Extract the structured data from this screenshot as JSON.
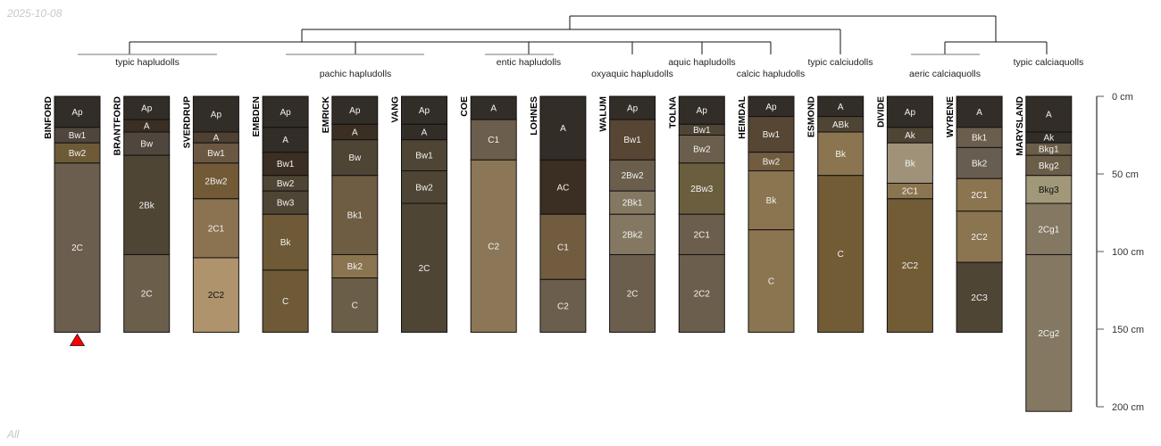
{
  "date_stamp": "2025-10-08",
  "footer_label": "All",
  "taxa_labels": [
    "typic hapludolls",
    "pachic hapludolls",
    "entic hapludolls",
    "oxyaquic hapludolls",
    "aquic hapludolls",
    "calcic hapludolls",
    "typic calciudolls",
    "aeric calciaquolls",
    "typic calciaquolls"
  ],
  "depth_axis": {
    "unit": "cm",
    "ticks": [
      "0 cm",
      "50 cm",
      "100 cm",
      "150 cm",
      "200 cm"
    ],
    "tick_values": [
      0,
      50,
      100,
      150,
      200
    ],
    "max_depth": 200
  },
  "marker": {
    "profile": "BINFORD",
    "color": "#ff0000"
  },
  "profiles": [
    {
      "name": "BINFORD",
      "horizons": [
        [
          "Ap",
          0,
          20,
          "#332d28"
        ],
        [
          "Bw1",
          20,
          30,
          "#4f463e"
        ],
        [
          "Bw2",
          30,
          43,
          "#6e5a36"
        ],
        [
          "2C",
          43,
          152,
          "#6b5e4e"
        ]
      ]
    },
    {
      "name": "BRANTFORD",
      "horizons": [
        [
          "Ap",
          0,
          15,
          "#332d28"
        ],
        [
          "A",
          15,
          23,
          "#3b2e22"
        ],
        [
          "Bw",
          23,
          38,
          "#4f463e"
        ],
        [
          "2Bk",
          38,
          102,
          "#4f4535"
        ],
        [
          "2C",
          102,
          152,
          "#6b5f4c"
        ]
      ]
    },
    {
      "name": "SVERDRUP",
      "horizons": [
        [
          "Ap",
          0,
          23,
          "#332d28"
        ],
        [
          "A",
          23,
          30,
          "#4f4132"
        ],
        [
          "Bw1",
          30,
          43,
          "#6b5842"
        ],
        [
          "2Bw2",
          43,
          66,
          "#725a37"
        ],
        [
          "2C1",
          66,
          104,
          "#8b7250"
        ],
        [
          "2C2",
          104,
          152,
          "#ae936c"
        ]
      ]
    },
    {
      "name": "EMBDEN",
      "horizons": [
        [
          "Ap",
          0,
          20,
          "#332d28"
        ],
        [
          "A",
          20,
          36,
          "#332d28"
        ],
        [
          "Bw1",
          36,
          51,
          "#3b2e22"
        ],
        [
          "Bw2",
          51,
          61,
          "#4f4535"
        ],
        [
          "Bw3",
          61,
          76,
          "#4f4535"
        ],
        [
          "Bk",
          76,
          112,
          "#6e5a36"
        ],
        [
          "C",
          112,
          152,
          "#6e5a36"
        ]
      ]
    },
    {
      "name": "EMRICK",
      "horizons": [
        [
          "Ap",
          0,
          18,
          "#332d28"
        ],
        [
          "A",
          18,
          28,
          "#3b2e22"
        ],
        [
          "Bw",
          28,
          51,
          "#4f4535"
        ],
        [
          "Bk1",
          51,
          102,
          "#6e5d42"
        ],
        [
          "Bk2",
          102,
          117,
          "#8b7550"
        ],
        [
          "C",
          117,
          152,
          "#6b5e48"
        ]
      ]
    },
    {
      "name": "VANG",
      "horizons": [
        [
          "Ap",
          0,
          18,
          "#332d28"
        ],
        [
          "A",
          18,
          28,
          "#332d28"
        ],
        [
          "Bw1",
          28,
          48,
          "#4f4535"
        ],
        [
          "Bw2",
          48,
          69,
          "#4f4535"
        ],
        [
          "2C",
          69,
          152,
          "#4f4535"
        ]
      ]
    },
    {
      "name": "COE",
      "horizons": [
        [
          "A",
          0,
          15,
          "#332d28"
        ],
        [
          "C1",
          15,
          41,
          "#6b5e4c"
        ],
        [
          "C2",
          41,
          152,
          "#8b7757"
        ]
      ]
    },
    {
      "name": "LOHNES",
      "horizons": [
        [
          "A",
          0,
          41,
          "#332d28"
        ],
        [
          "AC",
          41,
          76,
          "#3b2e22"
        ],
        [
          "C1",
          76,
          118,
          "#725c40"
        ],
        [
          "C2",
          118,
          152,
          "#6b5e4c"
        ]
      ]
    },
    {
      "name": "WALUM",
      "horizons": [
        [
          "Ap",
          0,
          15,
          "#332d28"
        ],
        [
          "Bw1",
          15,
          41,
          "#574634"
        ],
        [
          "2Bw2",
          41,
          61,
          "#6b5e4c"
        ],
        [
          "2Bk1",
          61,
          76,
          "#857862"
        ],
        [
          "2Bk2",
          76,
          102,
          "#857862"
        ],
        [
          "2C",
          102,
          152,
          "#6b5e4c"
        ]
      ]
    },
    {
      "name": "TOLNA",
      "horizons": [
        [
          "Ap",
          0,
          18,
          "#332d28"
        ],
        [
          "Bw1",
          18,
          25,
          "#4f4535"
        ],
        [
          "Bw2",
          25,
          43,
          "#6b5e4c"
        ],
        [
          "2Bw3",
          43,
          76,
          "#6b5e3e"
        ],
        [
          "2C1",
          76,
          102,
          "#6b5e4c"
        ],
        [
          "2C2",
          102,
          152,
          "#6b5e4c"
        ]
      ]
    },
    {
      "name": "HEIMDAL",
      "horizons": [
        [
          "Ap",
          0,
          13,
          "#332d28"
        ],
        [
          "Bw1",
          13,
          36,
          "#574634"
        ],
        [
          "Bw2",
          36,
          48,
          "#725c40"
        ],
        [
          "Bk",
          48,
          86,
          "#8b7550"
        ],
        [
          "C",
          86,
          152,
          "#8b7550"
        ]
      ]
    },
    {
      "name": "ESMOND",
      "horizons": [
        [
          "A",
          0,
          13,
          "#332d28"
        ],
        [
          "ABk",
          13,
          23,
          "#4f4535"
        ],
        [
          "Bk",
          23,
          51,
          "#8b7550"
        ],
        [
          "C",
          51,
          152,
          "#725c36"
        ]
      ]
    },
    {
      "name": "DIVIDE",
      "horizons": [
        [
          "Ap",
          0,
          20,
          "#332d28"
        ],
        [
          "Ak",
          20,
          30,
          "#4f4535"
        ],
        [
          "Bk",
          30,
          56,
          "#a09279"
        ],
        [
          "2C1",
          56,
          66,
          "#8b7550"
        ],
        [
          "2C2",
          66,
          152,
          "#725c36"
        ]
      ]
    },
    {
      "name": "WYRENE",
      "horizons": [
        [
          "A",
          0,
          20,
          "#332d28"
        ],
        [
          "Bk1",
          20,
          33,
          "#6b5e4c"
        ],
        [
          "Bk2",
          33,
          53,
          "#675d50"
        ],
        [
          "2C1",
          53,
          74,
          "#8b7550"
        ],
        [
          "2C2",
          74,
          107,
          "#8b7550"
        ],
        [
          "2C3",
          107,
          152,
          "#4f4535"
        ]
      ]
    },
    {
      "name": "MARYSLAND",
      "horizons": [
        [
          "A",
          0,
          23,
          "#332d28"
        ],
        [
          "Ak",
          23,
          30,
          "#332d28"
        ],
        [
          "Bkg1",
          30,
          38,
          "#6b5e48"
        ],
        [
          "Bkg2",
          38,
          51,
          "#6b5e48"
        ],
        [
          "Bkg3",
          51,
          69,
          "#a09879"
        ],
        [
          "2Cg1",
          69,
          102,
          "#857862"
        ],
        [
          "2Cg2",
          102,
          203,
          "#857862"
        ]
      ]
    }
  ]
}
